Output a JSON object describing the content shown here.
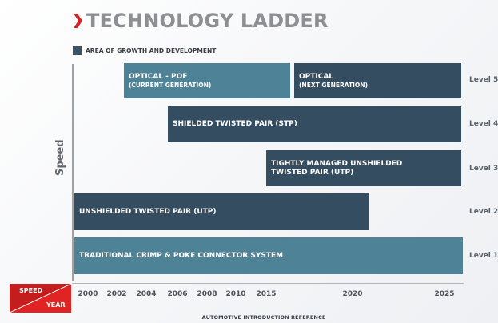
{
  "title": "TECHNOLOGY LADDER",
  "legend": {
    "label": "AREA OF GROWTH AND DEVELOPMENT",
    "color": "#3c5366"
  },
  "y_axis": {
    "label": "Speed"
  },
  "x_axis": {
    "ticks": [
      "2000",
      "2002",
      "2004",
      "2006",
      "2008",
      "2010",
      "2015",
      "2020",
      "2025"
    ],
    "caption": "AUTOMOTIVE INTRODUCTION REFERENCE"
  },
  "corner": {
    "speed": "SPEED",
    "year": "YEAR",
    "color": "#d42323"
  },
  "colors": {
    "current": "#4e8296",
    "growth": "#354d60",
    "accent": "#d42323"
  },
  "levels": [
    "Level 5",
    "Level 4",
    "Level 3",
    "Level 2",
    "Level 1"
  ],
  "bars": [
    {
      "line1": "OPTICAL - POF",
      "line2": "(CURRENT GENERATION)",
      "level": "Level 5",
      "start": "2004",
      "end": "2016",
      "style": "current"
    },
    {
      "line1": "OPTICAL",
      "line2": "(NEXT GENERATION)",
      "level": "Level 5",
      "start": "2016",
      "end": "2025+",
      "style": "growth"
    },
    {
      "line1": "SHIELDED TWISTED PAIR (STP)",
      "line2": "",
      "level": "Level 4",
      "start": "2006",
      "end": "2025+",
      "style": "growth"
    },
    {
      "line1": "TIGHTLY MANAGED UNSHIELDED",
      "line2": "TWISTED PAIR (UTP)",
      "level": "Level 3",
      "start": "2015",
      "end": "2025+",
      "style": "growth"
    },
    {
      "line1": "UNSHIELDED TWISTED PAIR (UTP)",
      "line2": "",
      "level": "Level 2",
      "start": "2000",
      "end": "2020",
      "style": "growth"
    },
    {
      "line1": "TRADITIONAL CRIMP & POKE CONNECTOR SYSTEM",
      "line2": "",
      "level": "Level 1",
      "start": "2000",
      "end": "2025+",
      "style": "current"
    }
  ]
}
